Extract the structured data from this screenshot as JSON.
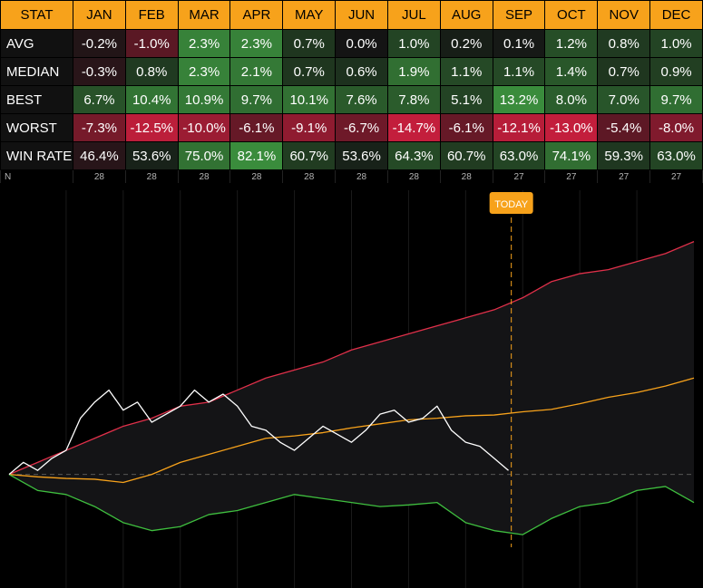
{
  "table": {
    "header": [
      "STAT",
      "JAN",
      "FEB",
      "MAR",
      "APR",
      "MAY",
      "JUN",
      "JUL",
      "AUG",
      "SEP",
      "OCT",
      "NOV",
      "DEC"
    ],
    "rows": [
      {
        "label": "AVG",
        "values": [
          "-0.2%",
          "-1.0%",
          "2.3%",
          "2.3%",
          "0.7%",
          "0.0%",
          "1.0%",
          "0.2%",
          "0.1%",
          "1.2%",
          "0.8%",
          "1.0%"
        ]
      },
      {
        "label": "MEDIAN",
        "values": [
          "-0.3%",
          "0.8%",
          "2.3%",
          "2.1%",
          "0.7%",
          "0.6%",
          "1.9%",
          "1.1%",
          "1.1%",
          "1.4%",
          "0.7%",
          "0.9%"
        ]
      },
      {
        "label": "BEST",
        "values": [
          "6.7%",
          "10.4%",
          "10.9%",
          "9.7%",
          "10.1%",
          "7.6%",
          "7.8%",
          "5.1%",
          "13.2%",
          "8.0%",
          "7.0%",
          "9.7%"
        ]
      },
      {
        "label": "WORST",
        "values": [
          "-7.3%",
          "-12.5%",
          "-10.0%",
          "-6.1%",
          "-9.1%",
          "-6.7%",
          "-14.7%",
          "-6.1%",
          "-12.1%",
          "-13.0%",
          "-5.4%",
          "-8.0%"
        ]
      },
      {
        "label": "WIN RATE",
        "values": [
          "46.4%",
          "53.6%",
          "75.0%",
          "82.1%",
          "60.7%",
          "53.6%",
          "64.3%",
          "60.7%",
          "63.0%",
          "74.1%",
          "59.3%",
          "63.0%"
        ]
      }
    ],
    "n_row": {
      "label": "N",
      "values": [
        "28",
        "28",
        "28",
        "28",
        "28",
        "28",
        "28",
        "28",
        "27",
        "27",
        "27",
        "27"
      ]
    }
  },
  "chart_data": {
    "type": "line",
    "today_label": "TODAY",
    "today_month_position": 8.8,
    "months": [
      "JAN",
      "FEB",
      "MAR",
      "APR",
      "MAY",
      "JUN",
      "JUL",
      "AUG",
      "SEP",
      "OCT",
      "NOV",
      "DEC"
    ],
    "ylim": [
      -12,
      32
    ],
    "series": [
      {
        "role": "best",
        "color": "#e0304a",
        "x": [
          0,
          0.5,
          1,
          1.5,
          2,
          2.5,
          3,
          3.5,
          4,
          4.5,
          5,
          5.5,
          6,
          6.5,
          7,
          7.5,
          8,
          8.5,
          9,
          9.5,
          10,
          10.5,
          11,
          11.5,
          12
        ],
        "y": [
          0,
          1.5,
          3,
          4.5,
          6,
          7,
          8.5,
          9,
          10.5,
          12,
          13,
          14,
          15.5,
          16.5,
          17.5,
          18.5,
          19.5,
          20.5,
          22,
          24,
          25,
          25.5,
          26.5,
          27.5,
          29
        ]
      },
      {
        "role": "average",
        "color": "#f7a21b",
        "x": [
          0,
          0.5,
          1,
          1.5,
          2,
          2.5,
          3,
          3.5,
          4,
          4.5,
          5,
          5.5,
          6,
          6.5,
          7,
          7.5,
          8,
          8.5,
          9,
          9.5,
          10,
          10.5,
          11,
          11.5,
          12
        ],
        "y": [
          0,
          -0.3,
          -0.5,
          -0.6,
          -1,
          0,
          1.5,
          2.5,
          3.5,
          4.5,
          4.8,
          5.2,
          5.8,
          6.3,
          6.8,
          7,
          7.3,
          7.4,
          7.8,
          8.1,
          8.8,
          9.6,
          10.2,
          11,
          12
        ]
      },
      {
        "role": "worst",
        "color": "#3fbf3f",
        "x": [
          0,
          0.5,
          1,
          1.5,
          2,
          2.5,
          3,
          3.5,
          4,
          4.5,
          5,
          5.5,
          6,
          6.5,
          7,
          7.5,
          8,
          8.5,
          9,
          9.5,
          10,
          10.5,
          11,
          11.5,
          12
        ],
        "y": [
          0,
          -2,
          -2.5,
          -4,
          -6,
          -7,
          -6.5,
          -5,
          -4.5,
          -3.5,
          -2.5,
          -3,
          -3.5,
          -4,
          -3.8,
          -3.5,
          -6,
          -7,
          -7.5,
          -5.5,
          -4,
          -3.5,
          -2,
          -1.5,
          -3.5
        ]
      },
      {
        "role": "current",
        "color": "#ffffff",
        "x": [
          0,
          0.25,
          0.5,
          0.75,
          1,
          1.25,
          1.5,
          1.75,
          2,
          2.25,
          2.5,
          2.75,
          3,
          3.25,
          3.5,
          3.75,
          4,
          4.25,
          4.5,
          4.75,
          5,
          5.25,
          5.5,
          5.75,
          6,
          6.25,
          6.5,
          6.75,
          7,
          7.25,
          7.5,
          7.75,
          8,
          8.25,
          8.5,
          8.75
        ],
        "y": [
          0,
          1.5,
          0.5,
          2,
          3,
          7,
          9,
          10.5,
          8,
          9,
          6.5,
          7.5,
          8.5,
          10.5,
          9,
          10,
          8.5,
          6,
          5.5,
          4,
          3,
          4.5,
          6,
          5,
          4,
          5.5,
          7.5,
          8,
          6.5,
          7,
          8.5,
          5.5,
          4,
          3.5,
          2,
          0.5
        ]
      }
    ]
  }
}
